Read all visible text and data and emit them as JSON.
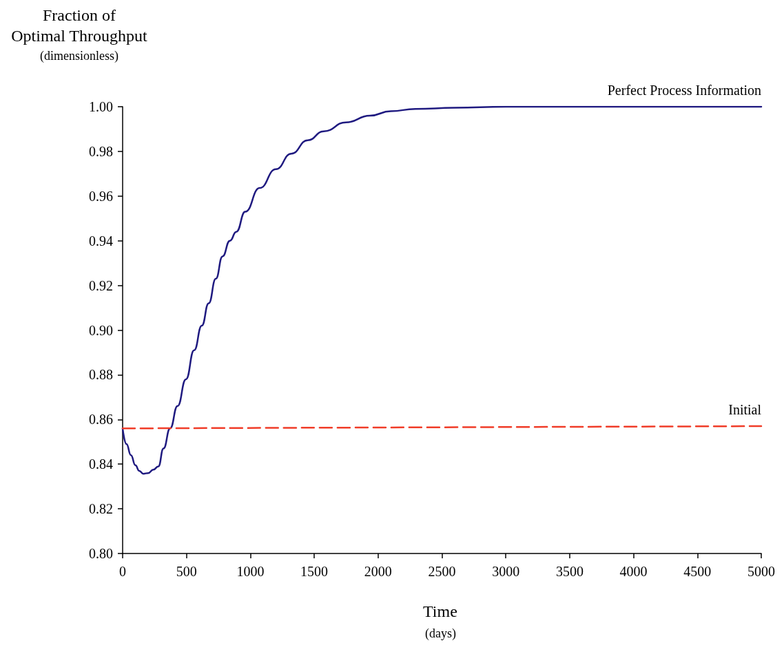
{
  "chart_data": {
    "type": "line",
    "xlabel": "Time (days)",
    "ylabel": "Fraction of Optimal Throughput (dimensionless)",
    "xlim": [
      0,
      5000
    ],
    "xticks": [
      0,
      500,
      1000,
      1500,
      2000,
      2500,
      3000,
      3500,
      4000,
      4500,
      5000
    ],
    "ylim": [
      0.8,
      1.0
    ],
    "yticks": [
      {
        "value": 0.8,
        "label": "0.80"
      },
      {
        "value": 0.82,
        "label": "0.82"
      },
      {
        "value": 0.84,
        "label": "0.84"
      },
      {
        "value": 0.86,
        "label": "0.86"
      },
      {
        "value": 0.88,
        "label": "0.88"
      },
      {
        "value": 0.9,
        "label": "0.90"
      },
      {
        "value": 0.92,
        "label": "0.92"
      },
      {
        "value": 0.94,
        "label": "0.94"
      },
      {
        "value": 0.96,
        "label": "0.96"
      },
      {
        "value": 0.98,
        "label": "0.98"
      },
      {
        "value": 1.0,
        "label": "1.00"
      }
    ],
    "grid": false,
    "legend": false,
    "marker": "none",
    "series": [
      {
        "name": "Perfect Process Information",
        "color": "#1f1a80",
        "line_style": "solid",
        "x": [
          0,
          30,
          65,
          100,
          130,
          162,
          200,
          240,
          280,
          320,
          372,
          430,
          496,
          560,
          620,
          674,
          730,
          782,
          840,
          890,
          960,
          1073,
          1200,
          1321,
          1450,
          1575,
          1750,
          1936,
          2100,
          2292,
          2600,
          3000,
          3500,
          4000,
          4500,
          5000
        ],
        "values": [
          0.856,
          0.849,
          0.844,
          0.8395,
          0.837,
          0.8357,
          0.836,
          0.8375,
          0.839,
          0.847,
          0.856,
          0.866,
          0.878,
          0.891,
          0.902,
          0.912,
          0.923,
          0.933,
          0.94,
          0.944,
          0.953,
          0.9636,
          0.972,
          0.979,
          0.985,
          0.989,
          0.993,
          0.996,
          0.998,
          0.999,
          0.9995,
          1.0,
          1.0,
          1.0,
          1.0,
          1.0
        ]
      },
      {
        "name": "Initial",
        "color": "#f03c28",
        "line_style": "dashed",
        "x": [
          0,
          5000
        ],
        "values": [
          0.856,
          0.857
        ]
      }
    ]
  }
}
